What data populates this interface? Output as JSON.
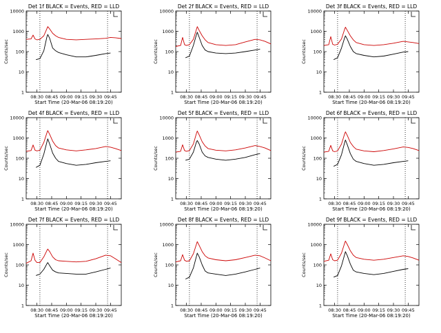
{
  "colors": {
    "events": "#000000",
    "lld": "#cc0000",
    "axis": "#000000",
    "background": "#ffffff"
  },
  "time_ticks": [
    "08:30",
    "08:45",
    "09:00",
    "09:15",
    "09:30",
    "09:45"
  ],
  "y_ticks": [
    "1",
    "10",
    "100",
    "1000",
    "10000"
  ],
  "ylabel": "Counts/sec",
  "xlabel": "Start Time (20-Mar-06 08:19:20)",
  "chart_data": [
    {
      "type": "line",
      "title": "Det 1f BLACK = Events, RED = LLD",
      "xlabel": "Start Time (20-Mar-06 08:19:20)",
      "ylabel": "Counts/sec",
      "yscale": "log",
      "xlim": [
        "08:19",
        "09:56"
      ],
      "ylim": [
        1,
        10000
      ],
      "vlines": [
        "08:33",
        "09:42"
      ],
      "series": [
        {
          "color": "red",
          "x": [
            "08:19",
            "08:24",
            "08:26",
            "08:28",
            "08:30",
            "08:33",
            "08:37",
            "08:40",
            "08:41",
            "08:43",
            "08:46",
            "08:49",
            "08:52",
            "09:00",
            "09:10",
            "09:20",
            "09:30",
            "09:40",
            "09:45",
            "09:50",
            "09:56"
          ],
          "y": [
            400,
            420,
            650,
            420,
            380,
            400,
            600,
            1300,
            1700,
            1300,
            800,
            600,
            500,
            400,
            380,
            400,
            420,
            450,
            500,
            480,
            440
          ]
        },
        {
          "color": "black",
          "x": [
            "08:29",
            "08:33",
            "08:37",
            "08:40",
            "08:41",
            "08:43",
            "08:46",
            "08:49",
            "08:52",
            "09:00",
            "09:10",
            "09:20",
            "09:30",
            "09:40",
            "09:45"
          ],
          "y": [
            40,
            45,
            110,
            500,
            700,
            450,
            150,
            110,
            90,
            70,
            55,
            55,
            65,
            80,
            85
          ]
        }
      ]
    },
    {
      "type": "line",
      "title": "Det 2f BLACK = Events, RED = LLD",
      "xlabel": "Start Time (20-Mar-06 08:19:20)",
      "ylabel": "Counts/sec",
      "yscale": "log",
      "xlim": [
        "08:19",
        "09:56"
      ],
      "ylim": [
        1,
        10000
      ],
      "vlines": [
        "08:33",
        "09:42"
      ],
      "series": [
        {
          "color": "red",
          "x": [
            "08:19",
            "08:24",
            "08:26",
            "08:28",
            "08:30",
            "08:33",
            "08:37",
            "08:40",
            "08:41",
            "08:43",
            "08:46",
            "08:49",
            "08:52",
            "09:00",
            "09:10",
            "09:20",
            "09:30",
            "09:40",
            "09:45",
            "09:50",
            "09:56"
          ],
          "y": [
            180,
            200,
            500,
            220,
            200,
            220,
            400,
            1200,
            1700,
            1100,
            600,
            380,
            280,
            220,
            200,
            220,
            300,
            400,
            380,
            320,
            240
          ]
        },
        {
          "color": "black",
          "x": [
            "08:29",
            "08:33",
            "08:37",
            "08:40",
            "08:41",
            "08:43",
            "08:46",
            "08:49",
            "08:52",
            "09:00",
            "09:10",
            "09:20",
            "09:30",
            "09:40",
            "09:45"
          ],
          "y": [
            50,
            60,
            200,
            650,
            900,
            500,
            200,
            120,
            100,
            85,
            80,
            85,
            100,
            120,
            130
          ]
        }
      ]
    },
    {
      "type": "line",
      "title": "Det 3f BLACK = Events, RED = LLD",
      "xlabel": "Start Time (20-Mar-06 08:19:20)",
      "ylabel": "Counts/sec",
      "yscale": "log",
      "xlim": [
        "08:19",
        "09:56"
      ],
      "ylim": [
        1,
        10000
      ],
      "vlines": [
        "08:33",
        "09:42"
      ],
      "series": [
        {
          "color": "red",
          "x": [
            "08:19",
            "08:24",
            "08:26",
            "08:28",
            "08:30",
            "08:33",
            "08:37",
            "08:40",
            "08:41",
            "08:43",
            "08:46",
            "08:49",
            "08:52",
            "09:00",
            "09:10",
            "09:20",
            "09:30",
            "09:40",
            "09:45",
            "09:50",
            "09:56"
          ],
          "y": [
            200,
            220,
            550,
            230,
            210,
            230,
            420,
            1200,
            1600,
            1100,
            600,
            380,
            280,
            220,
            200,
            220,
            260,
            320,
            300,
            280,
            250
          ]
        },
        {
          "color": "black",
          "x": [
            "08:29",
            "08:33",
            "08:37",
            "08:40",
            "08:41",
            "08:43",
            "08:46",
            "08:49",
            "08:52",
            "09:00",
            "09:10",
            "09:20",
            "09:30",
            "09:40",
            "09:45"
          ],
          "y": [
            40,
            50,
            150,
            450,
            600,
            400,
            180,
            100,
            80,
            65,
            55,
            60,
            75,
            95,
            100
          ]
        }
      ]
    },
    {
      "type": "line",
      "title": "Det 4f BLACK = Events, RED = LLD",
      "xlabel": "Start Time (20-Mar-06 08:19:20)",
      "ylabel": "Counts/sec",
      "yscale": "log",
      "xlim": [
        "08:19",
        "09:56"
      ],
      "ylim": [
        1,
        10000
      ],
      "vlines": [
        "08:33",
        "09:42"
      ],
      "series": [
        {
          "color": "red",
          "x": [
            "08:19",
            "08:24",
            "08:26",
            "08:28",
            "08:30",
            "08:33",
            "08:37",
            "08:40",
            "08:41",
            "08:43",
            "08:46",
            "08:49",
            "08:52",
            "09:00",
            "09:10",
            "09:20",
            "09:30",
            "09:40",
            "09:45",
            "09:50",
            "09:56"
          ],
          "y": [
            220,
            240,
            450,
            250,
            230,
            250,
            600,
            1700,
            2300,
            1500,
            700,
            420,
            320,
            260,
            230,
            260,
            300,
            380,
            350,
            300,
            240
          ]
        },
        {
          "color": "black",
          "x": [
            "08:29",
            "08:33",
            "08:37",
            "08:40",
            "08:41",
            "08:43",
            "08:46",
            "08:49",
            "08:52",
            "09:00",
            "09:10",
            "09:20",
            "09:30",
            "09:40",
            "09:45"
          ],
          "y": [
            35,
            45,
            160,
            600,
            900,
            500,
            180,
            100,
            70,
            55,
            45,
            50,
            60,
            70,
            75
          ]
        }
      ]
    },
    {
      "type": "line",
      "title": "Det 5f BLACK = Events, RED = LLD",
      "xlabel": "Start Time (20-Mar-06 08:19:20)",
      "ylabel": "Counts/sec",
      "yscale": "log",
      "xlim": [
        "08:19",
        "09:56"
      ],
      "ylim": [
        1,
        10000
      ],
      "vlines": [
        "08:33",
        "09:42"
      ],
      "series": [
        {
          "color": "red",
          "x": [
            "08:19",
            "08:24",
            "08:26",
            "08:28",
            "08:30",
            "08:33",
            "08:37",
            "08:40",
            "08:41",
            "08:43",
            "08:46",
            "08:49",
            "08:52",
            "09:00",
            "09:10",
            "09:20",
            "09:30",
            "09:40",
            "09:45",
            "09:50",
            "09:56"
          ],
          "y": [
            200,
            220,
            460,
            240,
            220,
            240,
            500,
            1600,
            2200,
            1400,
            650,
            400,
            300,
            250,
            230,
            260,
            320,
            420,
            380,
            320,
            240
          ]
        },
        {
          "color": "black",
          "x": [
            "08:29",
            "08:33",
            "08:37",
            "08:40",
            "08:41",
            "08:43",
            "08:46",
            "08:49",
            "08:52",
            "09:00",
            "09:10",
            "09:20",
            "09:30",
            "09:40",
            "09:45"
          ],
          "y": [
            80,
            90,
            200,
            600,
            750,
            500,
            200,
            130,
            110,
            90,
            80,
            90,
            110,
            150,
            170
          ]
        }
      ]
    },
    {
      "type": "line",
      "title": "Det 6f BLACK = Events, RED = LLD",
      "xlabel": "Start Time (20-Mar-06 08:19:20)",
      "ylabel": "Counts/sec",
      "yscale": "log",
      "xlim": [
        "08:19",
        "09:56"
      ],
      "ylim": [
        1,
        10000
      ],
      "vlines": [
        "08:33",
        "09:42"
      ],
      "series": [
        {
          "color": "red",
          "x": [
            "08:19",
            "08:24",
            "08:26",
            "08:28",
            "08:30",
            "08:33",
            "08:37",
            "08:40",
            "08:41",
            "08:43",
            "08:46",
            "08:49",
            "08:52",
            "09:00",
            "09:10",
            "09:20",
            "09:30",
            "09:40",
            "09:45",
            "09:50",
            "09:56"
          ],
          "y": [
            200,
            220,
            430,
            230,
            210,
            230,
            500,
            1500,
            2000,
            1300,
            600,
            380,
            280,
            230,
            210,
            240,
            290,
            360,
            340,
            300,
            240
          ]
        },
        {
          "color": "black",
          "x": [
            "08:29",
            "08:33",
            "08:37",
            "08:40",
            "08:41",
            "08:43",
            "08:46",
            "08:49",
            "08:52",
            "09:00",
            "09:10",
            "09:20",
            "09:30",
            "09:40",
            "09:45"
          ],
          "y": [
            40,
            50,
            150,
            550,
            800,
            450,
            170,
            90,
            70,
            55,
            45,
            50,
            60,
            70,
            75
          ]
        }
      ]
    },
    {
      "type": "line",
      "title": "Det 7f BLACK = Events, RED = LLD",
      "xlabel": "Start Time (20-Mar-06 08:19:20)",
      "ylabel": "Counts/sec",
      "yscale": "log",
      "xlim": [
        "08:19",
        "09:56"
      ],
      "ylim": [
        1,
        10000
      ],
      "vlines": [
        "08:33",
        "09:42"
      ],
      "series": [
        {
          "color": "red",
          "x": [
            "08:19",
            "08:24",
            "08:26",
            "08:28",
            "08:30",
            "08:33",
            "08:37",
            "08:40",
            "08:41",
            "08:43",
            "08:46",
            "08:49",
            "08:52",
            "09:00",
            "09:10",
            "09:20",
            "09:30",
            "09:40",
            "09:45",
            "09:50",
            "09:56"
          ],
          "y": [
            120,
            160,
            380,
            170,
            130,
            130,
            250,
            500,
            600,
            450,
            250,
            180,
            160,
            150,
            140,
            150,
            200,
            300,
            280,
            200,
            130
          ]
        },
        {
          "color": "black",
          "x": [
            "08:29",
            "08:33",
            "08:37",
            "08:40",
            "08:41",
            "08:43",
            "08:46",
            "08:49",
            "08:52",
            "09:00",
            "09:10",
            "09:20",
            "09:30",
            "09:40",
            "09:45"
          ],
          "y": [
            30,
            35,
            60,
            110,
            130,
            90,
            55,
            45,
            40,
            38,
            35,
            35,
            45,
            60,
            70
          ]
        }
      ]
    },
    {
      "type": "line",
      "title": "Det 8f BLACK = Events, RED = LLD",
      "xlabel": "Start Time (20-Mar-06 08:19:20)",
      "ylabel": "Counts/sec",
      "yscale": "log",
      "xlim": [
        "08:19",
        "09:56"
      ],
      "ylim": [
        1,
        10000
      ],
      "vlines": [
        "08:33",
        "09:42"
      ],
      "series": [
        {
          "color": "red",
          "x": [
            "08:19",
            "08:24",
            "08:26",
            "08:28",
            "08:30",
            "08:33",
            "08:37",
            "08:40",
            "08:41",
            "08:43",
            "08:46",
            "08:49",
            "08:52",
            "09:00",
            "09:10",
            "09:20",
            "09:30",
            "09:40",
            "09:45",
            "09:50",
            "09:56"
          ],
          "y": [
            140,
            160,
            320,
            170,
            150,
            160,
            350,
            1000,
            1400,
            900,
            450,
            280,
            220,
            180,
            160,
            180,
            230,
            300,
            280,
            220,
            160
          ]
        },
        {
          "color": "black",
          "x": [
            "08:29",
            "08:33",
            "08:37",
            "08:40",
            "08:41",
            "08:43",
            "08:46",
            "08:49",
            "08:52",
            "09:00",
            "09:10",
            "09:20",
            "09:30",
            "09:40",
            "09:45"
          ],
          "y": [
            20,
            25,
            70,
            250,
            380,
            250,
            100,
            50,
            40,
            35,
            30,
            35,
            45,
            60,
            70
          ]
        }
      ]
    },
    {
      "type": "line",
      "title": "Det 9f BLACK = Events, RED = LLD",
      "xlabel": "Start Time (20-Mar-06 08:19:20)",
      "ylabel": "Counts/sec",
      "yscale": "log",
      "xlim": [
        "08:19",
        "09:56"
      ],
      "ylim": [
        1,
        10000
      ],
      "vlines": [
        "08:33",
        "09:42"
      ],
      "series": [
        {
          "color": "red",
          "x": [
            "08:19",
            "08:24",
            "08:26",
            "08:28",
            "08:30",
            "08:33",
            "08:37",
            "08:40",
            "08:41",
            "08:43",
            "08:46",
            "08:49",
            "08:52",
            "09:00",
            "09:10",
            "09:20",
            "09:30",
            "09:40",
            "09:45",
            "09:50",
            "09:56"
          ],
          "y": [
            150,
            170,
            350,
            180,
            160,
            170,
            380,
            1100,
            1500,
            1000,
            500,
            300,
            230,
            190,
            170,
            190,
            230,
            280,
            260,
            220,
            170
          ]
        },
        {
          "color": "black",
          "x": [
            "08:29",
            "08:33",
            "08:37",
            "08:40",
            "08:41",
            "08:43",
            "08:46",
            "08:49",
            "08:52",
            "09:00",
            "09:10",
            "09:20",
            "09:30",
            "09:40",
            "09:45"
          ],
          "y": [
            25,
            30,
            90,
            300,
            450,
            280,
            110,
            55,
            45,
            38,
            33,
            38,
            48,
            60,
            65
          ]
        }
      ]
    }
  ]
}
